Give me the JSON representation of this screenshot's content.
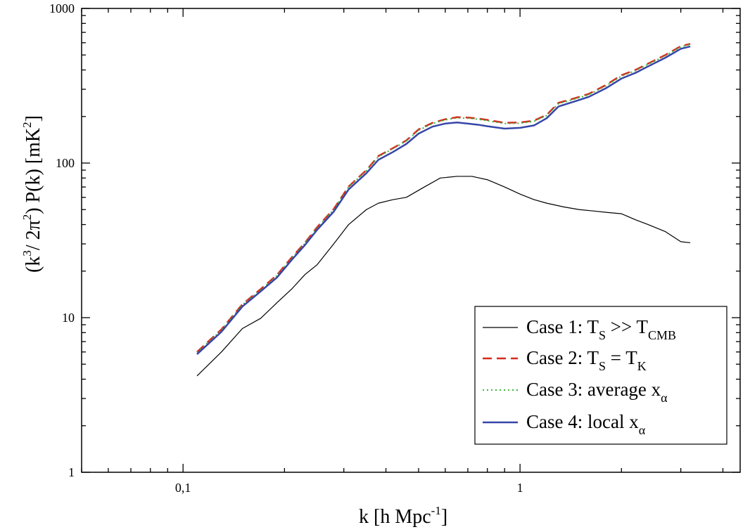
{
  "chart_data": {
    "type": "line",
    "xscale": "log",
    "yscale": "log",
    "xlim": [
      0.05,
      4.5
    ],
    "ylim": [
      1,
      1000
    ],
    "x_ticks": [
      {
        "value": 0.1,
        "label": "0,1"
      },
      {
        "value": 1,
        "label": "1"
      }
    ],
    "y_ticks": [
      {
        "value": 1,
        "label": "1"
      },
      {
        "value": 10,
        "label": "10"
      },
      {
        "value": 100,
        "label": "100"
      },
      {
        "value": 1000,
        "label": "1000"
      }
    ],
    "xlabel": {
      "main": "k  [h Mpc",
      "sup": "-1",
      "end": "]"
    },
    "ylabel": {
      "p1": "(k",
      "sup1": "3",
      "p2": "/ 2π",
      "sup2": "2",
      "p3": ") P(k)    [mK",
      "sup3": "2",
      "p4": "]"
    },
    "legend": {
      "position": "bottom-right",
      "entries": [
        {
          "main": "Case 1: T",
          "sub1": "S",
          "mid": " >> T",
          "sub2": "CMB"
        },
        {
          "main": "Case 2: T",
          "sub1": "S",
          "mid": " = T",
          "sub2": "K"
        },
        {
          "main": "Case 3: average x",
          "sub1": "α",
          "mid": "",
          "sub2": ""
        },
        {
          "main": "Case 4: local x",
          "sub1": "α",
          "mid": "",
          "sub2": ""
        }
      ]
    },
    "series": [
      {
        "color": "#000000",
        "style": "solid",
        "x": [
          0.11,
          0.13,
          0.15,
          0.17,
          0.19,
          0.21,
          0.23,
          0.25,
          0.28,
          0.31,
          0.35,
          0.38,
          0.42,
          0.46,
          0.52,
          0.58,
          0.65,
          0.72,
          0.8,
          0.9,
          1.0,
          1.1,
          1.2,
          1.35,
          1.5,
          1.65,
          1.8,
          2.0,
          2.2,
          2.4,
          2.7,
          3.0,
          3.2
        ],
        "y": [
          4.2,
          6.0,
          8.5,
          9.9,
          12.5,
          15.3,
          19.0,
          22.0,
          30.0,
          40.0,
          50.0,
          55.0,
          58.0,
          60.0,
          70.0,
          80.0,
          82.0,
          82.0,
          78.0,
          70.0,
          63.0,
          58.0,
          55.0,
          52.0,
          50.0,
          49.0,
          48.0,
          47.0,
          43.0,
          40.0,
          36.0,
          31.0,
          30.5
        ]
      },
      {
        "color": "#d62b1f",
        "style": "dashed",
        "x": [
          0.11,
          0.13,
          0.15,
          0.17,
          0.19,
          0.21,
          0.23,
          0.25,
          0.28,
          0.31,
          0.35,
          0.38,
          0.42,
          0.46,
          0.5,
          0.55,
          0.6,
          0.65,
          0.7,
          0.75,
          0.8,
          0.9,
          1.0,
          1.1,
          1.2,
          1.3,
          1.45,
          1.6,
          1.8,
          2.0,
          2.2,
          2.4,
          2.7,
          3.0,
          3.2
        ],
        "y": [
          6.0,
          8.4,
          12.2,
          15.3,
          18.9,
          24.5,
          30.5,
          38.5,
          50.5,
          70.5,
          90.0,
          111.0,
          125.0,
          140.0,
          165.0,
          182.0,
          192.0,
          198.0,
          197.0,
          194.0,
          190.0,
          182.0,
          183.0,
          188.0,
          205.0,
          245.0,
          262.0,
          280.0,
          320.0,
          370.0,
          400.0,
          440.0,
          500.0,
          570.0,
          590.0
        ]
      },
      {
        "color": "#3cb43c",
        "style": "dotted",
        "x": [
          0.11,
          0.13,
          0.15,
          0.17,
          0.19,
          0.21,
          0.23,
          0.25,
          0.28,
          0.31,
          0.35,
          0.38,
          0.42,
          0.46,
          0.5,
          0.55,
          0.6,
          0.65,
          0.7,
          0.75,
          0.8,
          0.9,
          1.0,
          1.1,
          1.2,
          1.3,
          1.45,
          1.6,
          1.8,
          2.0,
          2.2,
          2.4,
          2.7,
          3.0,
          3.2
        ],
        "y": [
          5.95,
          8.3,
          12.1,
          15.1,
          18.7,
          24.2,
          30.2,
          38.0,
          50.0,
          70.0,
          89.0,
          110.0,
          124.0,
          139.0,
          163.0,
          180.0,
          190.0,
          196.0,
          195.0,
          192.0,
          188.0,
          180.0,
          181.0,
          186.0,
          203.0,
          242.0,
          259.0,
          277.0,
          316.0,
          365.0,
          396.0,
          435.0,
          495.0,
          565.0,
          585.0
        ]
      },
      {
        "color": "#3646a8",
        "style": "solid",
        "x": [
          0.11,
          0.13,
          0.15,
          0.17,
          0.19,
          0.21,
          0.23,
          0.25,
          0.28,
          0.31,
          0.35,
          0.38,
          0.42,
          0.46,
          0.5,
          0.55,
          0.6,
          0.65,
          0.7,
          0.75,
          0.8,
          0.9,
          1.0,
          1.1,
          1.2,
          1.3,
          1.45,
          1.6,
          1.8,
          2.0,
          2.2,
          2.4,
          2.7,
          3.0,
          3.2
        ],
        "y": [
          5.8,
          8.1,
          11.8,
          14.8,
          18.2,
          23.6,
          29.5,
          37.0,
          48.5,
          67.5,
          86.0,
          105.0,
          118.0,
          133.0,
          155.0,
          172.0,
          180.0,
          183.0,
          180.0,
          177.0,
          173.0,
          167.0,
          169.0,
          175.0,
          195.0,
          232.0,
          250.0,
          268.0,
          305.0,
          352.0,
          383.0,
          422.0,
          480.0,
          548.0,
          568.0
        ]
      }
    ]
  }
}
